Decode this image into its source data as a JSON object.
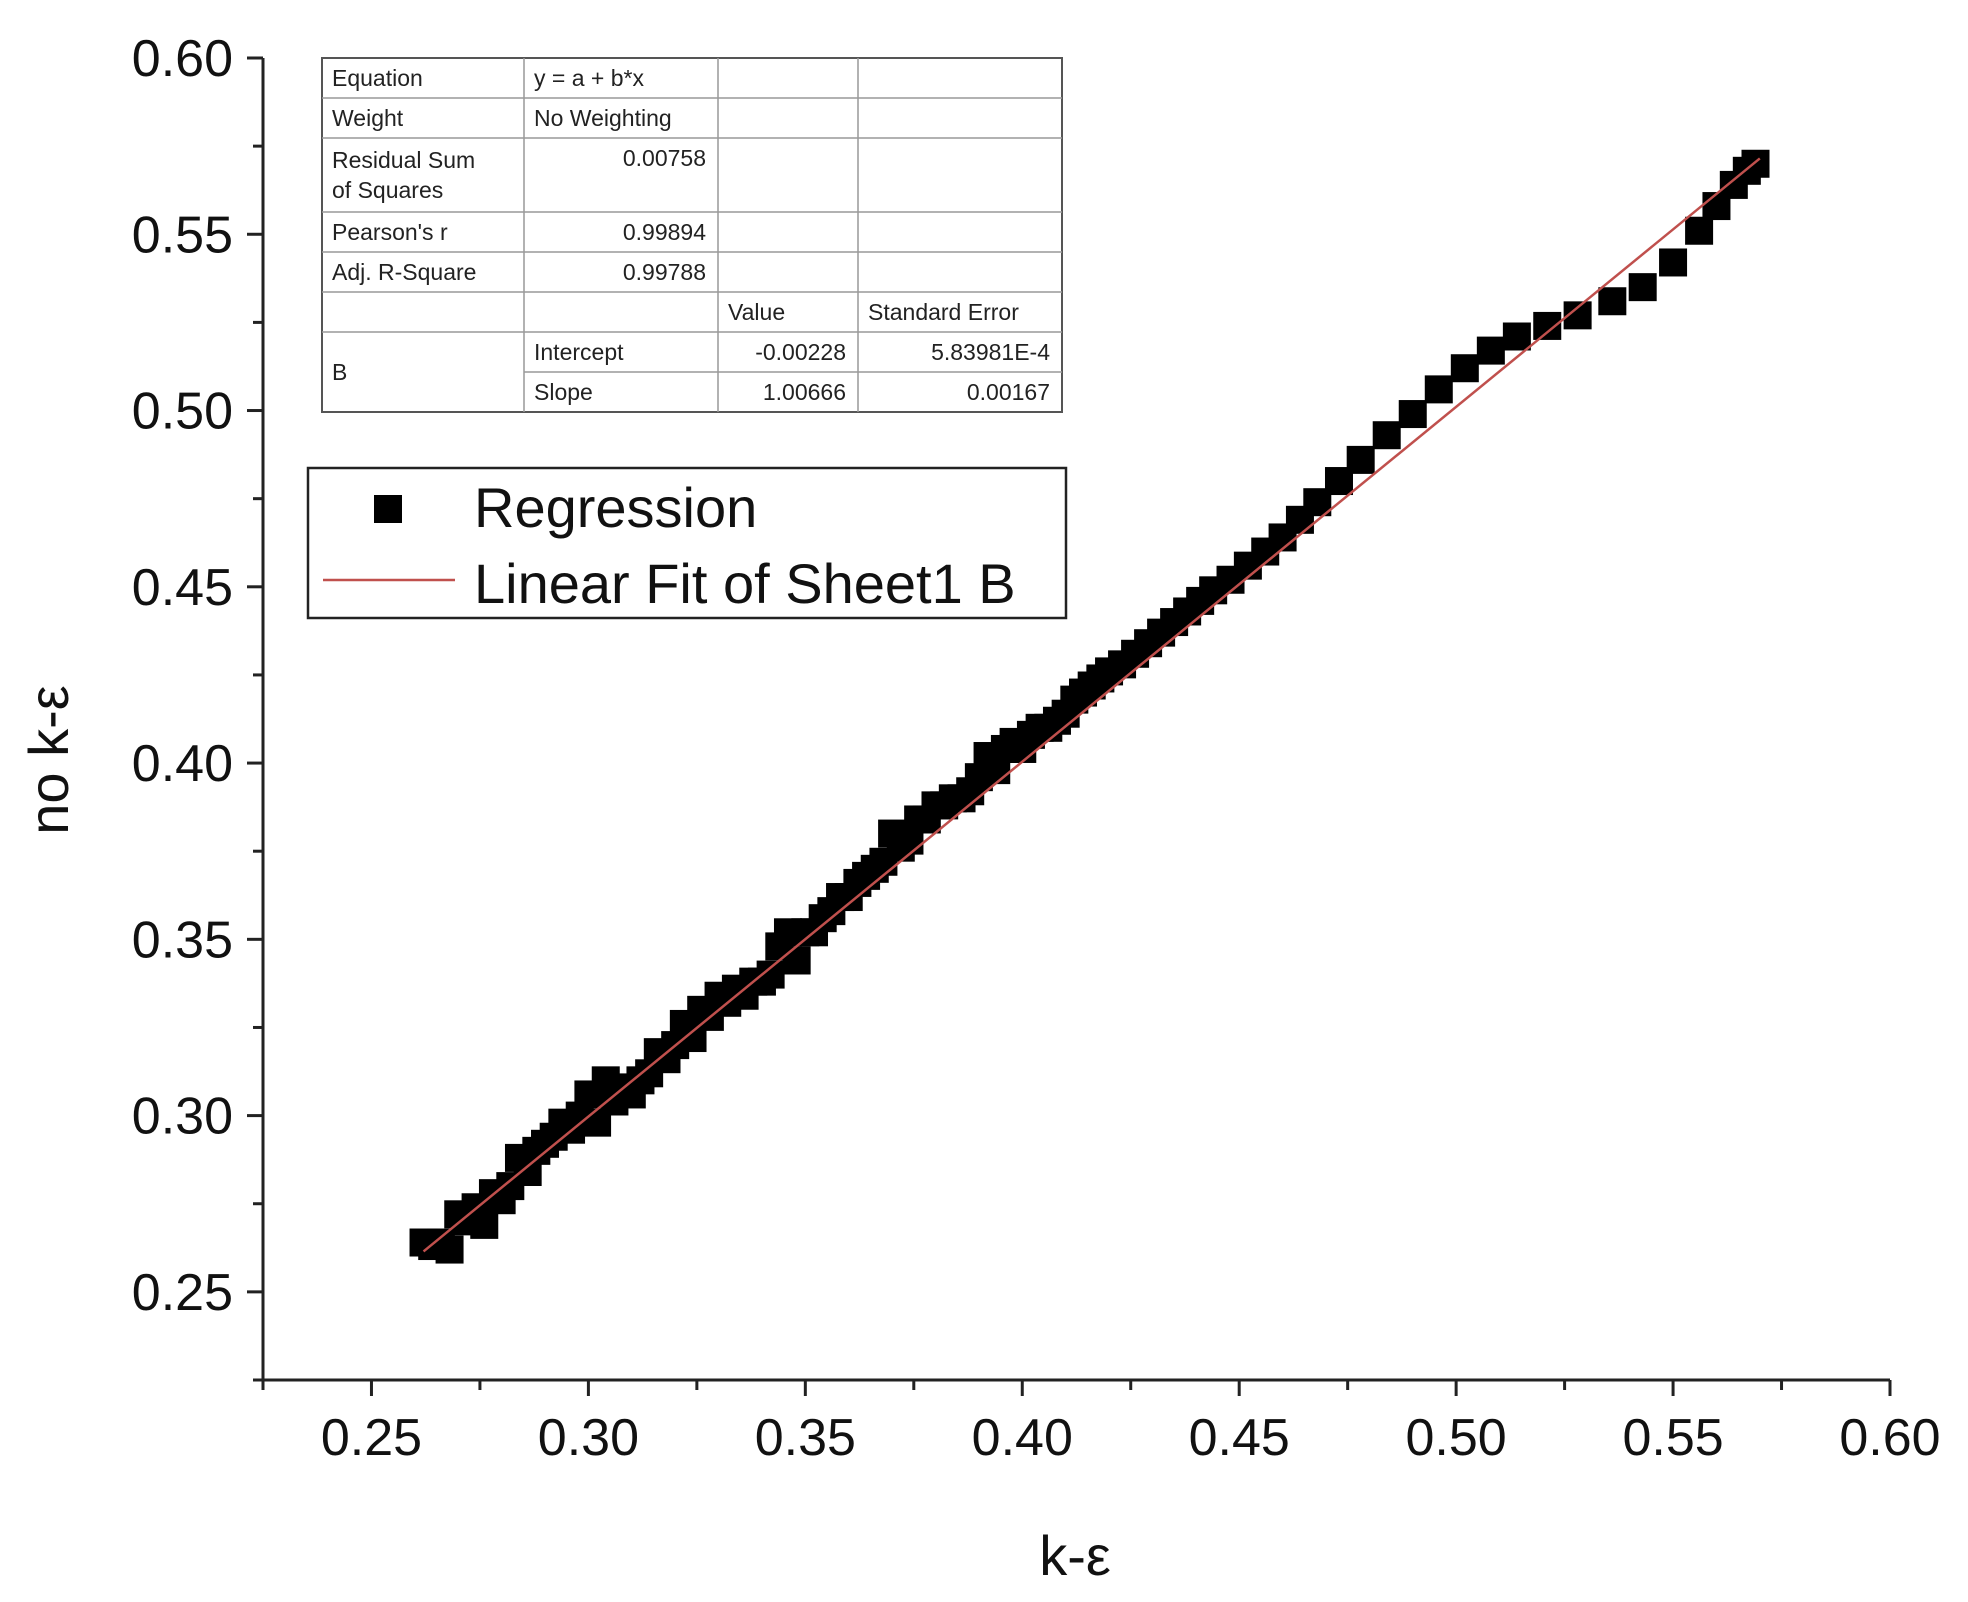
{
  "chart_data": {
    "type": "scatter",
    "xlabel": "k-ε",
    "ylabel": "no k-ε",
    "xlim": [
      0.225,
      0.6
    ],
    "ylim": [
      0.225,
      0.6
    ],
    "x_ticks": [
      "0.25",
      "0.30",
      "0.35",
      "0.40",
      "0.45",
      "0.50",
      "0.55",
      "0.60"
    ],
    "y_ticks": [
      "0.25",
      "0.30",
      "0.35",
      "0.40",
      "0.45",
      "0.50",
      "0.55",
      "0.60"
    ],
    "grid": false,
    "legend_position": "top-left",
    "series": [
      {
        "name": "Regression",
        "kind": "scatter",
        "marker": "square",
        "color": "#000000",
        "points": [
          [
            0.262,
            0.264
          ],
          [
            0.264,
            0.263
          ],
          [
            0.266,
            0.264
          ],
          [
            0.268,
            0.262
          ],
          [
            0.27,
            0.272
          ],
          [
            0.272,
            0.27
          ],
          [
            0.274,
            0.274
          ],
          [
            0.276,
            0.269
          ],
          [
            0.278,
            0.278
          ],
          [
            0.28,
            0.276
          ],
          [
            0.282,
            0.28
          ],
          [
            0.284,
            0.288
          ],
          [
            0.286,
            0.284
          ],
          [
            0.288,
            0.29
          ],
          [
            0.29,
            0.292
          ],
          [
            0.292,
            0.294
          ],
          [
            0.294,
            0.298
          ],
          [
            0.296,
            0.296
          ],
          [
            0.298,
            0.3
          ],
          [
            0.3,
            0.306
          ],
          [
            0.302,
            0.298
          ],
          [
            0.304,
            0.31
          ],
          [
            0.306,
            0.304
          ],
          [
            0.308,
            0.308
          ],
          [
            0.31,
            0.306
          ],
          [
            0.312,
            0.31
          ],
          [
            0.314,
            0.312
          ],
          [
            0.316,
            0.318
          ],
          [
            0.318,
            0.316
          ],
          [
            0.32,
            0.32
          ],
          [
            0.322,
            0.326
          ],
          [
            0.324,
            0.322
          ],
          [
            0.326,
            0.33
          ],
          [
            0.328,
            0.328
          ],
          [
            0.33,
            0.334
          ],
          [
            0.332,
            0.332
          ],
          [
            0.334,
            0.336
          ],
          [
            0.336,
            0.334
          ],
          [
            0.338,
            0.338
          ],
          [
            0.34,
            0.338
          ],
          [
            0.342,
            0.34
          ],
          [
            0.344,
            0.348
          ],
          [
            0.346,
            0.352
          ],
          [
            0.348,
            0.344
          ],
          [
            0.35,
            0.352
          ],
          [
            0.352,
            0.352
          ],
          [
            0.354,
            0.356
          ],
          [
            0.356,
            0.358
          ],
          [
            0.358,
            0.362
          ],
          [
            0.36,
            0.362
          ],
          [
            0.362,
            0.366
          ],
          [
            0.364,
            0.368
          ],
          [
            0.366,
            0.37
          ],
          [
            0.368,
            0.372
          ],
          [
            0.37,
            0.38
          ],
          [
            0.372,
            0.376
          ],
          [
            0.374,
            0.378
          ],
          [
            0.376,
            0.384
          ],
          [
            0.378,
            0.384
          ],
          [
            0.38,
            0.388
          ],
          [
            0.382,
            0.388
          ],
          [
            0.384,
            0.39
          ],
          [
            0.386,
            0.39
          ],
          [
            0.388,
            0.392
          ],
          [
            0.39,
            0.396
          ],
          [
            0.392,
            0.402
          ],
          [
            0.394,
            0.398
          ],
          [
            0.396,
            0.404
          ],
          [
            0.398,
            0.406
          ],
          [
            0.4,
            0.404
          ],
          [
            0.402,
            0.408
          ],
          [
            0.404,
            0.41
          ],
          [
            0.406,
            0.41
          ],
          [
            0.408,
            0.412
          ],
          [
            0.41,
            0.414
          ],
          [
            0.412,
            0.418
          ],
          [
            0.414,
            0.42
          ],
          [
            0.416,
            0.422
          ],
          [
            0.418,
            0.424
          ],
          [
            0.42,
            0.426
          ],
          [
            0.423,
            0.428
          ],
          [
            0.426,
            0.431
          ],
          [
            0.429,
            0.434
          ],
          [
            0.432,
            0.437
          ],
          [
            0.435,
            0.44
          ],
          [
            0.438,
            0.443
          ],
          [
            0.441,
            0.446
          ],
          [
            0.444,
            0.449
          ],
          [
            0.448,
            0.452
          ],
          [
            0.452,
            0.456
          ],
          [
            0.456,
            0.46
          ],
          [
            0.46,
            0.464
          ],
          [
            0.464,
            0.469
          ],
          [
            0.468,
            0.474
          ],
          [
            0.473,
            0.48
          ],
          [
            0.478,
            0.486
          ],
          [
            0.484,
            0.493
          ],
          [
            0.49,
            0.499
          ],
          [
            0.496,
            0.506
          ],
          [
            0.502,
            0.512
          ],
          [
            0.508,
            0.517
          ],
          [
            0.514,
            0.521
          ],
          [
            0.521,
            0.524
          ],
          [
            0.528,
            0.527
          ],
          [
            0.536,
            0.531
          ],
          [
            0.543,
            0.535
          ],
          [
            0.55,
            0.542
          ],
          [
            0.556,
            0.551
          ],
          [
            0.56,
            0.558
          ],
          [
            0.564,
            0.564
          ],
          [
            0.567,
            0.568
          ],
          [
            0.569,
            0.57
          ]
        ]
      },
      {
        "name": "Linear Fit of Sheet1 B",
        "kind": "line",
        "color": "#c0504d",
        "intercept": -0.00228,
        "slope": 1.00666,
        "x_range": [
          0.262,
          0.57
        ]
      }
    ]
  },
  "stats_table": {
    "rows": [
      [
        "Equation",
        "y = a + b*x",
        "",
        ""
      ],
      [
        "Weight",
        "No Weighting",
        "",
        ""
      ],
      [
        "Residual Sum of Squares",
        "0.00758",
        "",
        ""
      ],
      [
        "Pearson's r",
        "0.99894",
        "",
        ""
      ],
      [
        "Adj. R-Square",
        "0.99788",
        "",
        ""
      ],
      [
        "",
        "",
        "Value",
        "Standard Error"
      ],
      [
        "B",
        "Intercept",
        "-0.00228",
        "5.83981E-4"
      ],
      [
        "",
        "Slope",
        "1.00666",
        "0.00167"
      ]
    ],
    "rss_line1": "Residual Sum",
    "rss_line2": "of Squares"
  },
  "legend": {
    "entries": [
      "Regression",
      "Linear Fit of Sheet1 B"
    ]
  }
}
